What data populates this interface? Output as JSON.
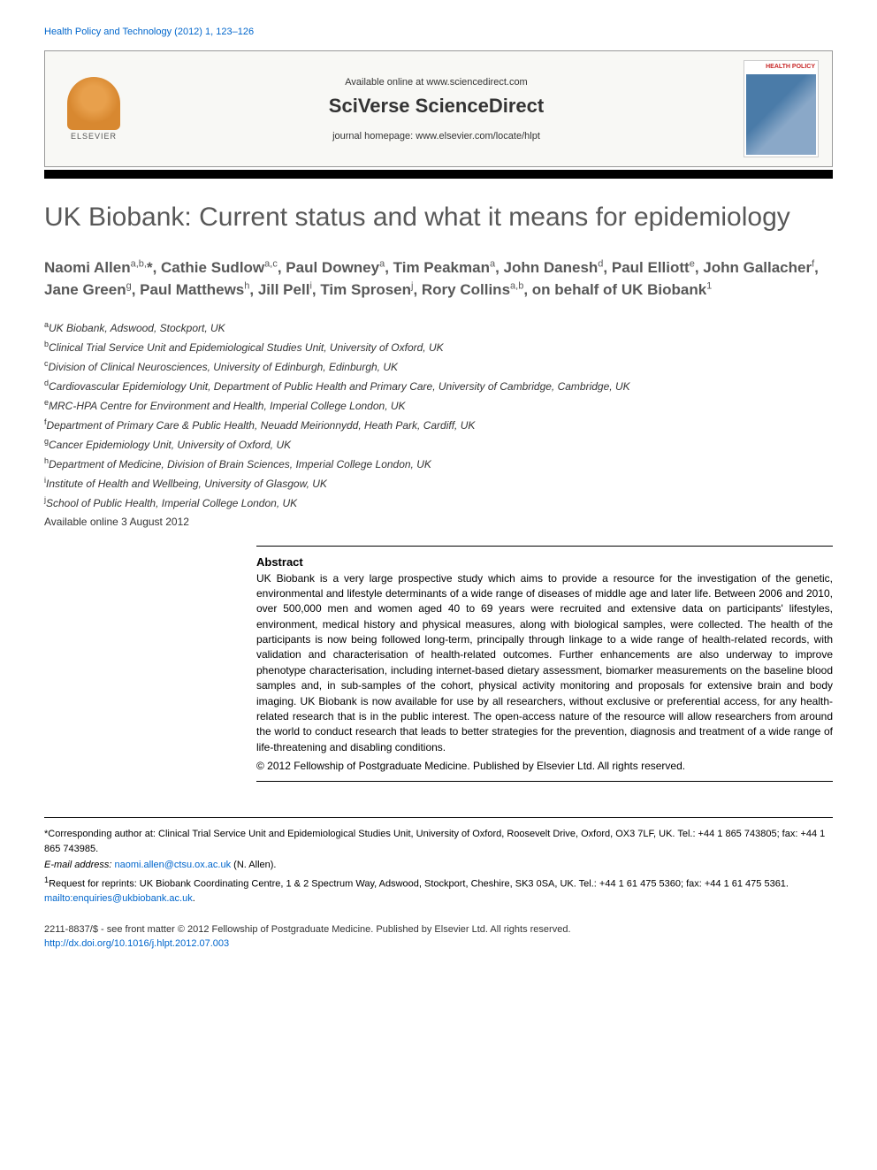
{
  "citation": "Health Policy and Technology (2012) 1, 123–126",
  "header": {
    "available_text": "Available online at www.sciencedirect.com",
    "brand": "SciVerse ScienceDirect",
    "homepage_text": "journal homepage: www.elsevier.com/locate/hlpt",
    "publisher_name": "ELSEVIER",
    "cover_title": "HEALTH POLICY"
  },
  "article": {
    "title": "UK Biobank: Current status and what it means for epidemiology",
    "authors_html": "Naomi Allen<sup>a,b,</sup>*, Cathie Sudlow<sup>a,c</sup>, Paul Downey<sup>a</sup>, Tim Peakman<sup>a</sup>, John Danesh<sup>d</sup>, Paul Elliott<sup>e</sup>, John Gallacher<sup>f</sup>, Jane Green<sup>g</sup>, Paul Matthews<sup>h</sup>, Jill Pell<sup>i</sup>, Tim Sprosen<sup>j</sup>, Rory Collins<sup>a,b</sup>, on behalf of UK Biobank<sup>1</sup>",
    "affiliations": [
      {
        "sup": "a",
        "text": "UK Biobank, Adswood, Stockport, UK"
      },
      {
        "sup": "b",
        "text": "Clinical Trial Service Unit and Epidemiological Studies Unit, University of Oxford, UK"
      },
      {
        "sup": "c",
        "text": "Division of Clinical Neurosciences, University of Edinburgh, Edinburgh, UK"
      },
      {
        "sup": "d",
        "text": "Cardiovascular Epidemiology Unit, Department of Public Health and Primary Care, University of Cambridge, Cambridge, UK"
      },
      {
        "sup": "e",
        "text": "MRC-HPA Centre for Environment and Health, Imperial College London, UK"
      },
      {
        "sup": "f",
        "text": "Department of Primary Care & Public Health, Neuadd Meirionnydd, Heath Park, Cardiff, UK"
      },
      {
        "sup": "g",
        "text": "Cancer Epidemiology Unit, University of Oxford, UK"
      },
      {
        "sup": "h",
        "text": "Department of Medicine, Division of Brain Sciences, Imperial College London, UK"
      },
      {
        "sup": "i",
        "text": "Institute of Health and Wellbeing, University of Glasgow, UK"
      },
      {
        "sup": "j",
        "text": "School of Public Health, Imperial College London, UK"
      }
    ],
    "available_date": "Available online 3 August 2012"
  },
  "abstract": {
    "heading": "Abstract",
    "text": "UK Biobank is a very large prospective study which aims to provide a resource for the investigation of the genetic, environmental and lifestyle determinants of a wide range of diseases of middle age and later life. Between 2006 and 2010, over 500,000 men and women aged 40 to 69 years were recruited and extensive data on participants' lifestyles, environment, medical history and physical measures, along with biological samples, were collected. The health of the participants is now being followed long-term, principally through linkage to a wide range of health-related records, with validation and characterisation of health-related outcomes. Further enhancements are also underway to improve phenotype characterisation, including internet-based dietary assessment, biomarker measurements on the baseline blood samples and, in sub-samples of the cohort, physical activity monitoring and proposals for extensive brain and body imaging. UK Biobank is now available for use by all researchers, without exclusive or preferential access, for any health-related research that is in the public interest. The open-access nature of the resource will allow researchers from around the world to conduct research that leads to better strategies for the prevention, diagnosis and treatment of a wide range of life-threatening and disabling conditions.",
    "copyright": "© 2012 Fellowship of Postgraduate Medicine. Published by Elsevier Ltd. All rights reserved."
  },
  "footnotes": {
    "corresponding": "*Corresponding author at: Clinical Trial Service Unit and Epidemiological Studies Unit, University of Oxford, Roosevelt Drive, Oxford, OX3 7LF, UK. Tel.: +44 1 865 743805; fax: +44 1 865 743985.",
    "email_label": "E-mail address:",
    "email": "naomi.allen@ctsu.ox.ac.uk",
    "email_name": "(N. Allen).",
    "reprints": "Request for reprints: UK Biobank Coordinating Centre, 1 & 2 Spectrum Way, Adswood, Stockport, Cheshire, SK3 0SA, UK. Tel.: +44 1 61 475 5360; fax: +44 1 61 475 5361.",
    "reprints_sup": "1",
    "mailto": "mailto:enquiries@ukbiobank.ac.uk"
  },
  "footer": {
    "line1": "2211-8837/$ - see front matter © 2012 Fellowship of Postgraduate Medicine. Published by Elsevier Ltd. All rights reserved.",
    "doi": "http://dx.doi.org/10.1016/j.hlpt.2012.07.003"
  },
  "colors": {
    "link": "#0066cc",
    "title_gray": "#585858",
    "elsevier_orange": "#e8a04c",
    "cover_red": "#c82828"
  },
  "typography": {
    "title_fontsize": 30,
    "authors_fontsize": 17,
    "body_fontsize": 13,
    "abstract_fontsize": 12,
    "footnote_fontsize": 11
  }
}
